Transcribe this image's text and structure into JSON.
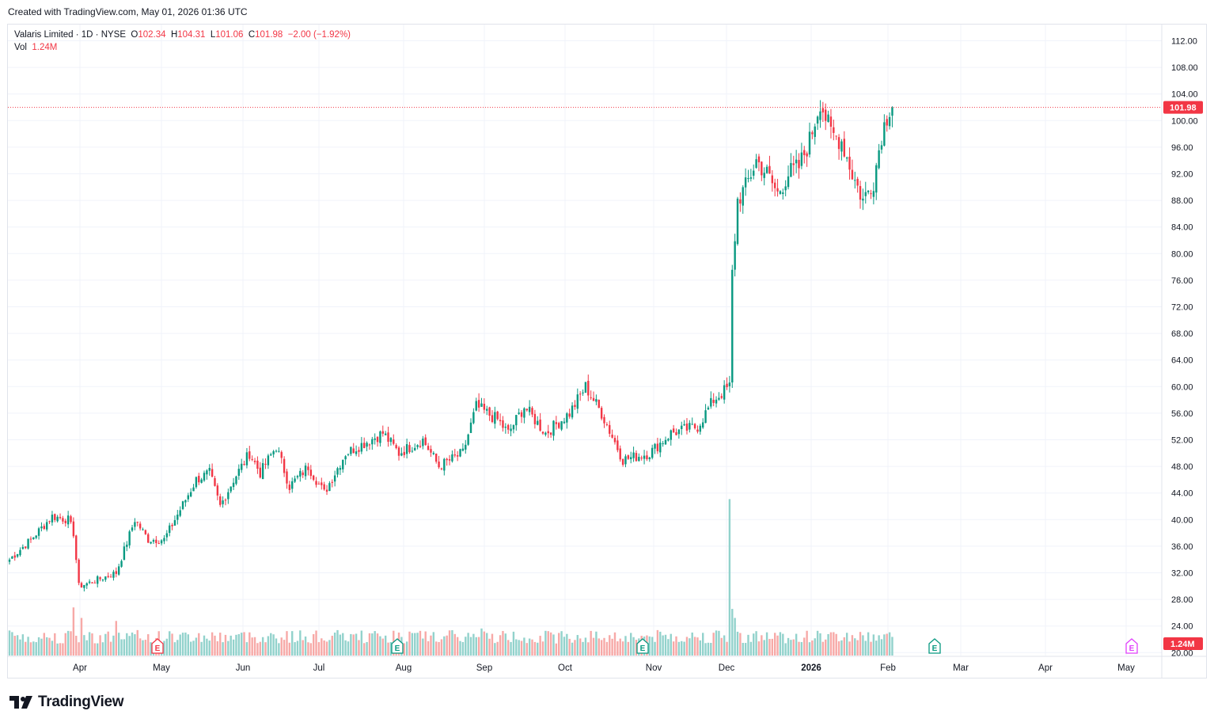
{
  "header": {
    "created_text": "Created with TradingView.com, May 01, 2026 01:36 UTC"
  },
  "legend": {
    "symbol": "Valaris Limited · 1D · NYSE",
    "o_label": "O",
    "o_value": "102.34",
    "h_label": "H",
    "h_value": "104.31",
    "l_label": "L",
    "l_value": "101.06",
    "c_label": "C",
    "c_value": "101.98",
    "change": "−2.00 (−1.92%)",
    "vol_label": "Vol",
    "vol_value": "1.24M"
  },
  "footer": {
    "brand": "TradingView"
  },
  "colors": {
    "up": "#089981",
    "down": "#f23645",
    "up_vol": "#92d2cc",
    "down_vol": "#f7a9a7",
    "earnings": "#089981"
  },
  "chart_data": {
    "type": "candlestick",
    "y_ticks": [
      "112.00",
      "108.00",
      "104.00",
      "100.00",
      "96.00",
      "92.00",
      "88.00",
      "84.00",
      "80.00",
      "76.00",
      "72.00",
      "68.00",
      "64.00",
      "60.00",
      "56.00",
      "52.00",
      "48.00",
      "44.00",
      "40.00",
      "36.00",
      "32.00",
      "28.00",
      "24.00",
      "20.00"
    ],
    "ylim": [
      19.2,
      113.6
    ],
    "x_labels": [
      "Apr",
      "May",
      "Jun",
      "Jul",
      "Aug",
      "Sep",
      "Oct",
      "Nov",
      "Dec",
      "2026",
      "Feb",
      "Mar",
      "Apr",
      "May"
    ],
    "last_price": {
      "value": 101.98,
      "label": "101.98"
    },
    "last_volume": {
      "value": 1.24,
      "label": "1.24M"
    },
    "earnings_markers": [
      {
        "label": "E",
        "date_index": 3
      },
      {
        "label": "E",
        "date_index": 6
      },
      {
        "label": "E",
        "date_index": 10
      },
      {
        "label": "E",
        "date_index": 16
      },
      {
        "label": "E",
        "date_index": 19
      }
    ],
    "anchors": [
      {
        "day": 0,
        "price": 34
      },
      {
        "day": 8,
        "price": 37
      },
      {
        "day": 16,
        "price": 40.5
      },
      {
        "day": 22,
        "price": 40
      },
      {
        "day": 24,
        "price": 38
      },
      {
        "day": 26,
        "price": 30
      },
      {
        "day": 30,
        "price": 30.5
      },
      {
        "day": 40,
        "price": 32
      },
      {
        "day": 47,
        "price": 40
      },
      {
        "day": 52,
        "price": 37
      },
      {
        "day": 58,
        "price": 37
      },
      {
        "day": 70,
        "price": 46
      },
      {
        "day": 75,
        "price": 47
      },
      {
        "day": 79,
        "price": 42
      },
      {
        "day": 84,
        "price": 46
      },
      {
        "day": 90,
        "price": 50
      },
      {
        "day": 94,
        "price": 47
      },
      {
        "day": 100,
        "price": 51
      },
      {
        "day": 105,
        "price": 45
      },
      {
        "day": 112,
        "price": 48
      },
      {
        "day": 118,
        "price": 44
      },
      {
        "day": 126,
        "price": 50
      },
      {
        "day": 140,
        "price": 53
      },
      {
        "day": 146,
        "price": 50
      },
      {
        "day": 155,
        "price": 52
      },
      {
        "day": 161,
        "price": 48
      },
      {
        "day": 170,
        "price": 50
      },
      {
        "day": 175,
        "price": 57
      },
      {
        "day": 183,
        "price": 55
      },
      {
        "day": 187,
        "price": 53
      },
      {
        "day": 193,
        "price": 57
      },
      {
        "day": 201,
        "price": 53
      },
      {
        "day": 210,
        "price": 56
      },
      {
        "day": 216,
        "price": 60
      },
      {
        "day": 222,
        "price": 56
      },
      {
        "day": 230,
        "price": 49
      },
      {
        "day": 240,
        "price": 50
      },
      {
        "day": 248,
        "price": 53
      },
      {
        "day": 258,
        "price": 54
      },
      {
        "day": 264,
        "price": 58
      },
      {
        "day": 270,
        "price": 60
      },
      {
        "day": 271,
        "price": 77
      },
      {
        "day": 273,
        "price": 88
      },
      {
        "day": 276,
        "price": 90
      },
      {
        "day": 280,
        "price": 94
      },
      {
        "day": 284,
        "price": 92
      },
      {
        "day": 288,
        "price": 89
      },
      {
        "day": 292,
        "price": 92
      },
      {
        "day": 296,
        "price": 93
      },
      {
        "day": 300,
        "price": 97
      },
      {
        "day": 304,
        "price": 103
      },
      {
        "day": 308,
        "price": 98
      },
      {
        "day": 312,
        "price": 97
      },
      {
        "day": 316,
        "price": 92
      },
      {
        "day": 320,
        "price": 88
      },
      {
        "day": 324,
        "price": 91
      },
      {
        "day": 327,
        "price": 98
      },
      {
        "day": 330,
        "price": 102
      },
      {
        "day": 331,
        "price": 102
      }
    ],
    "volume_spikes": [
      {
        "day": 24,
        "value": 3.2
      },
      {
        "day": 27,
        "value": 2.5
      },
      {
        "day": 40,
        "value": 2.3
      },
      {
        "day": 177,
        "value": 1.8
      },
      {
        "day": 270,
        "value": 10.4
      },
      {
        "day": 271,
        "value": 3.1
      },
      {
        "day": 272,
        "value": 2.5
      }
    ]
  }
}
